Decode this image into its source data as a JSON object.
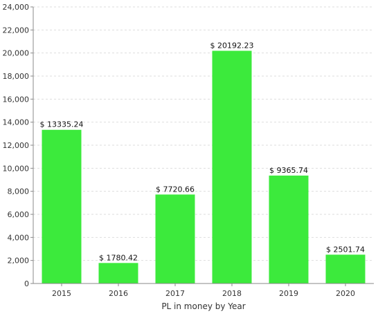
{
  "chart_data": {
    "type": "bar",
    "categories": [
      "2015",
      "2016",
      "2017",
      "2018",
      "2019",
      "2020"
    ],
    "values": [
      13335.24,
      1780.42,
      7720.66,
      20192.23,
      9365.74,
      2501.74
    ],
    "data_labels": [
      "$ 13335.24",
      "$ 1780.42",
      "$ 7720.66",
      "$ 20192.23",
      "$ 9365.74",
      "$ 2501.74"
    ],
    "xlabel": "PL in money by Year",
    "ylabel": "",
    "ylim": [
      0,
      24000
    ],
    "yticks": [
      0,
      2000,
      4000,
      6000,
      8000,
      10000,
      12000,
      14000,
      16000,
      18000,
      20000,
      22000,
      24000
    ],
    "ytick_labels": [
      "0",
      "2,000",
      "4,000",
      "6,000",
      "8,000",
      "10,000",
      "12,000",
      "14,000",
      "16,000",
      "18,000",
      "20,000",
      "22,000",
      "24,000"
    ],
    "grid": true,
    "legend": "none",
    "colors": {
      "bar": "#3cea3c",
      "grid": "#dddddd",
      "axis": "#888888"
    }
  }
}
